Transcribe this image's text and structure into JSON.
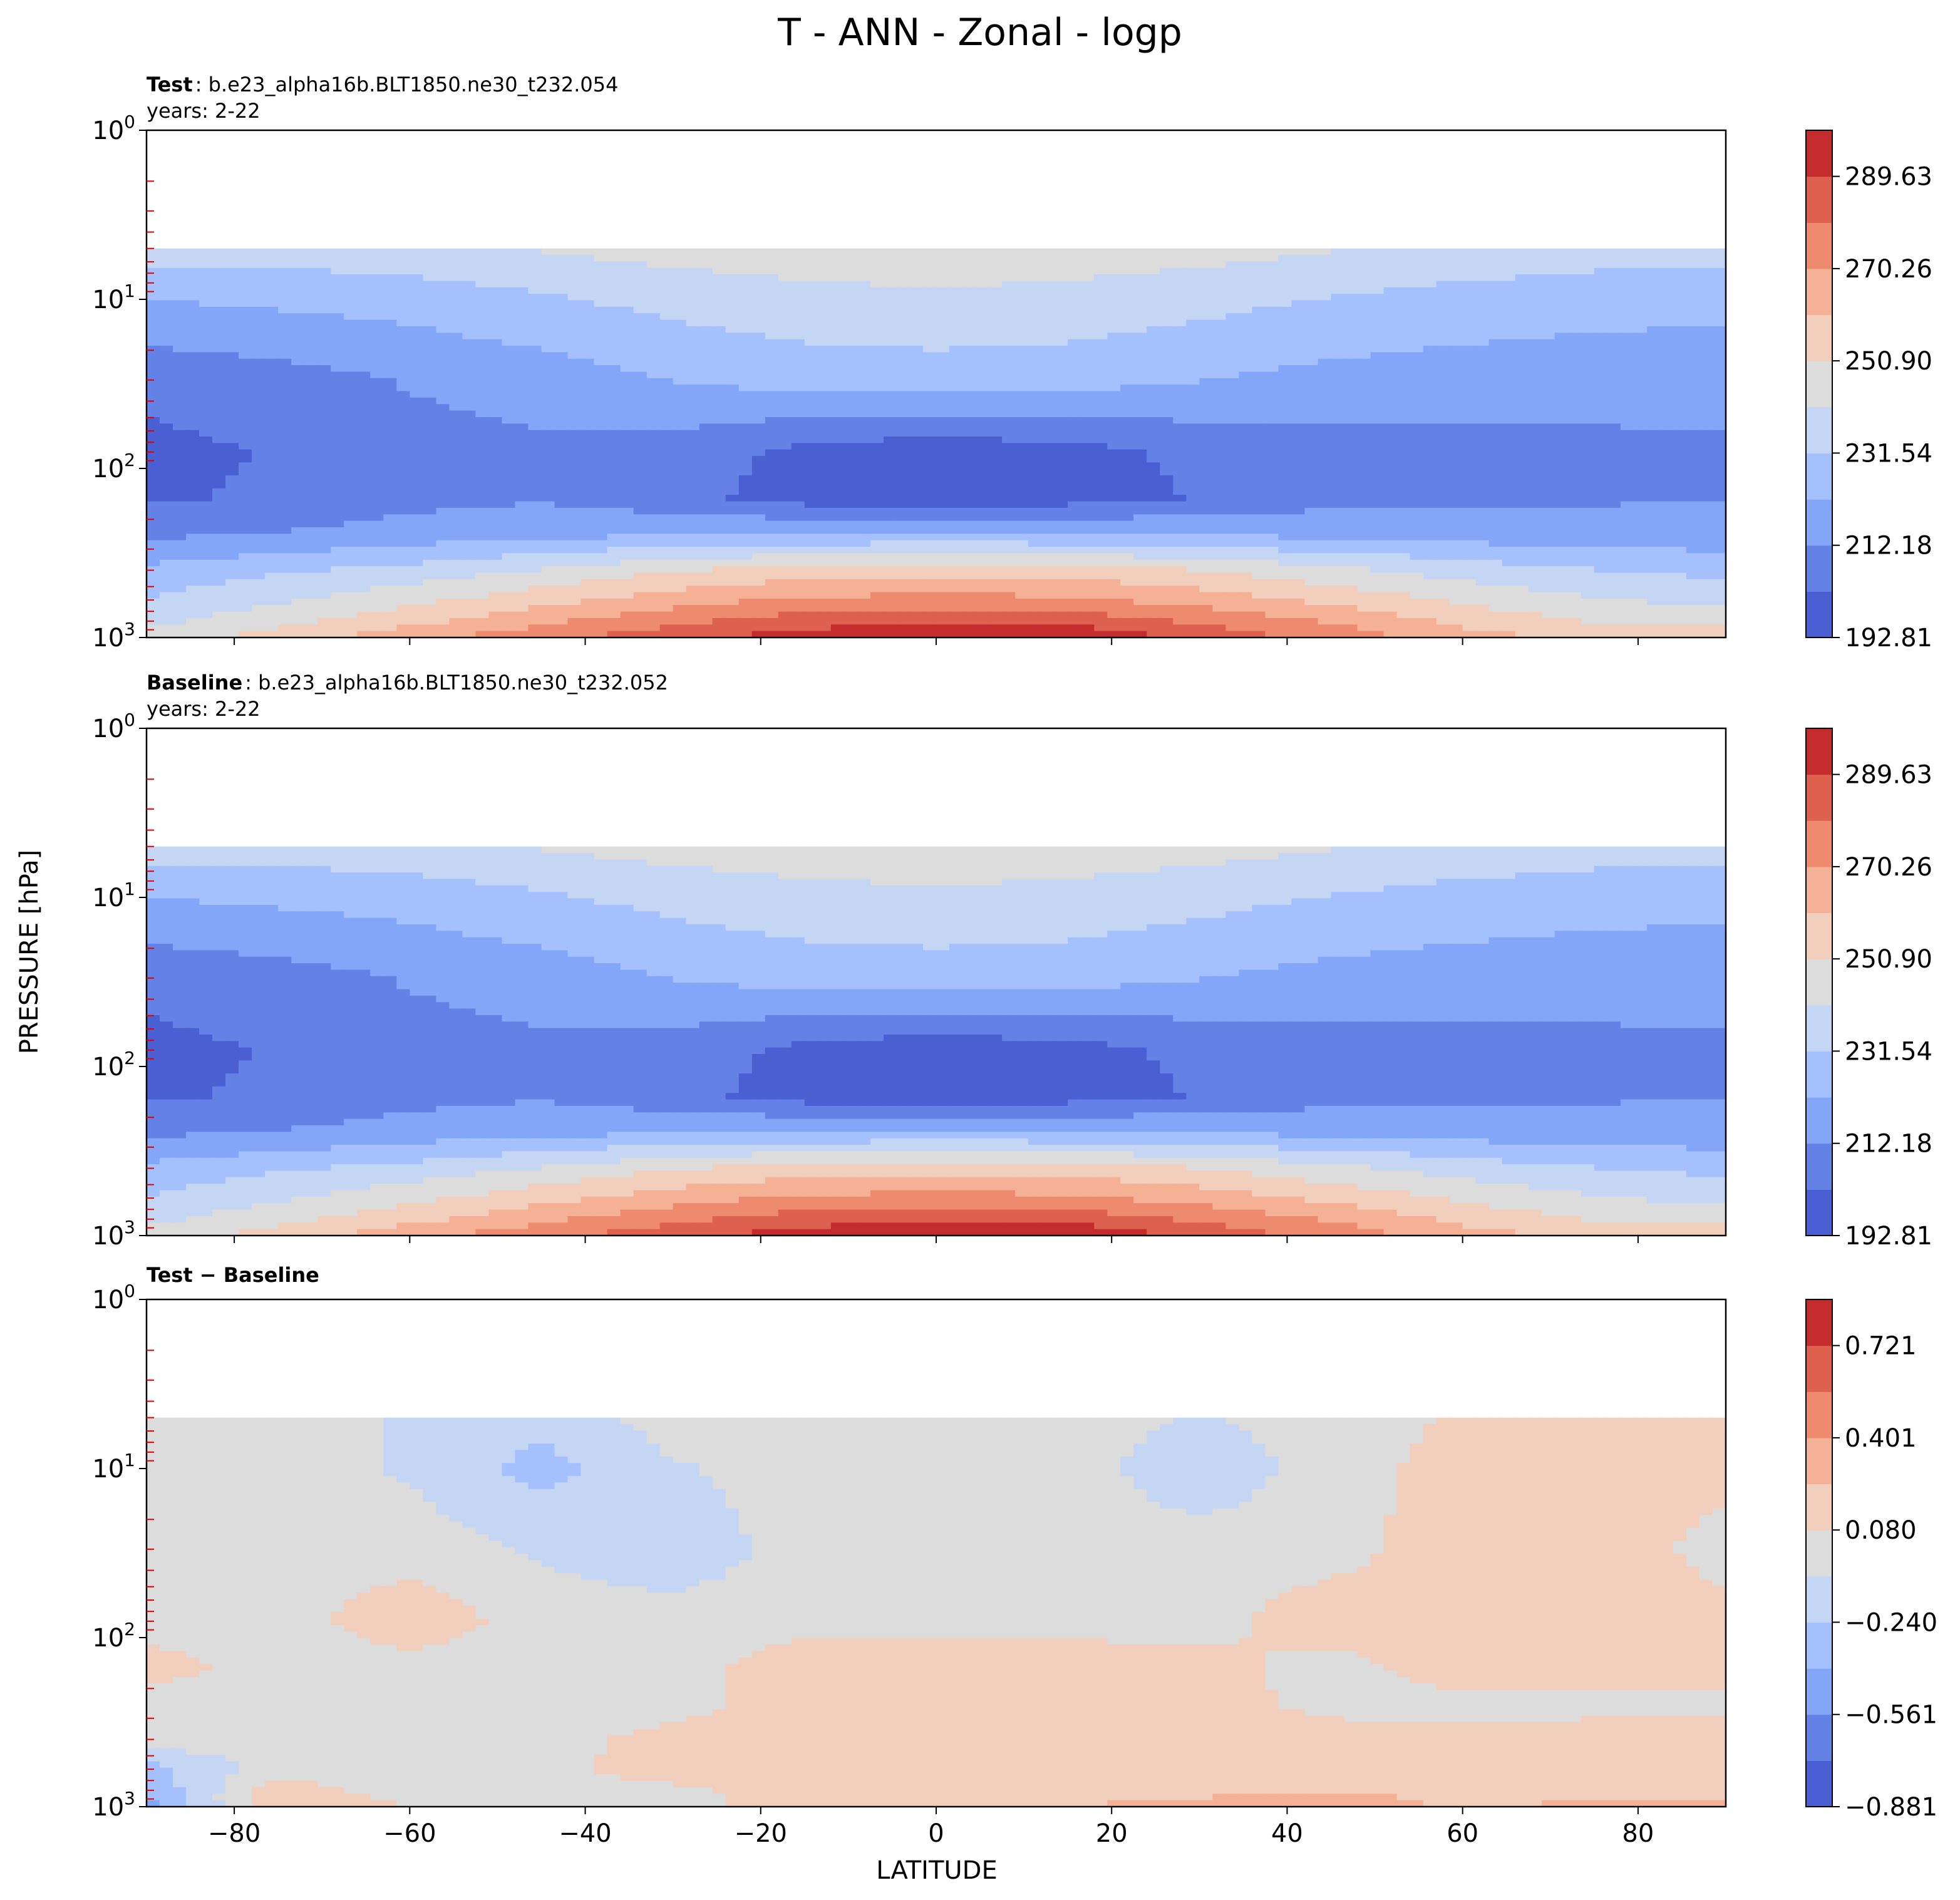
{
  "title": "T - ANN - Zonal - logp",
  "xlabel": "LATITUDE",
  "ylabel": "PRESSURE [hPa]",
  "colormap": "coolwarm",
  "chart_data": [
    {
      "type": "heatmap",
      "panel": "test",
      "header_bold": "Test",
      "header_text": ": b.e23_alpha16b.BLT1850.ne30_t232.054",
      "header_line2": "years: 2-22",
      "xlim": [
        -90,
        90
      ],
      "ylim_hpa": [
        1000,
        1
      ],
      "y_scale": "log",
      "x_ticks": [
        "−80",
        "−60",
        "−40",
        "−20",
        "0",
        "20",
        "40",
        "60",
        "80"
      ],
      "y_ticks": [
        {
          "base": "10",
          "exp": "0"
        },
        {
          "base": "10",
          "exp": "1"
        },
        {
          "base": "10",
          "exp": "2"
        },
        {
          "base": "10",
          "exp": "3"
        }
      ],
      "data_top_hpa": 5,
      "colorbar_labels": [
        "289.63",
        "270.26",
        "250.90",
        "231.54",
        "212.18",
        "192.81"
      ],
      "colorbar_range": [
        192.81,
        299.31
      ],
      "colors": [
        "#4a5fd1",
        "#6482e6",
        "#84a6f9",
        "#a5c1fd",
        "#c4d6f3",
        "#dcdcdc",
        "#f2cebd",
        "#f5b196",
        "#ee8a6d",
        "#de6150",
        "#c32b2d"
      ],
      "latitudes": [
        -90,
        -75,
        -60,
        -45,
        -30,
        -15,
        0,
        15,
        30,
        45,
        60,
        75,
        90
      ],
      "pressures_hpa": [
        5,
        10,
        30,
        80,
        150,
        250,
        400,
        600,
        850,
        1000
      ],
      "values": [
        [
          236,
          236,
          238,
          242,
          245,
          247,
          248,
          247,
          245,
          242,
          238,
          236,
          236
        ],
        [
          222,
          224,
          226,
          230,
          235,
          238,
          239,
          238,
          235,
          231,
          228,
          226,
          225
        ],
        [
          205,
          208,
          213,
          217,
          222,
          226,
          227,
          226,
          222,
          219,
          217,
          216,
          215
        ],
        [
          200,
          203,
          208,
          210,
          208,
          200,
          196,
          199,
          205,
          208,
          209,
          210,
          211
        ],
        [
          201,
          204,
          209,
          211,
          206,
          198,
          195,
          198,
          203,
          209,
          210,
          211,
          212
        ],
        [
          211,
          213,
          217,
          220,
          222,
          224,
          225,
          224,
          222,
          220,
          218,
          217,
          216
        ],
        [
          224,
          230,
          235,
          242,
          250,
          255,
          257,
          256,
          251,
          244,
          237,
          232,
          229
        ],
        [
          232,
          240,
          248,
          257,
          266,
          272,
          274,
          272,
          266,
          258,
          249,
          242,
          238
        ],
        [
          240,
          250,
          260,
          270,
          280,
          288,
          291,
          290,
          281,
          271,
          260,
          252,
          250
        ],
        [
          245,
          255,
          266,
          277,
          287,
          294,
          298,
          296,
          288,
          276,
          265,
          258,
          256
        ]
      ]
    },
    {
      "type": "heatmap",
      "panel": "baseline",
      "header_bold": "Baseline",
      "header_text": ": b.e23_alpha16b.BLT1850.ne30_t232.052",
      "header_line2": "years: 2-22",
      "xlim": [
        -90,
        90
      ],
      "ylim_hpa": [
        1000,
        1
      ],
      "y_scale": "log",
      "x_ticks": [
        "−80",
        "−60",
        "−40",
        "−20",
        "0",
        "20",
        "40",
        "60",
        "80"
      ],
      "y_ticks": [
        {
          "base": "10",
          "exp": "0"
        },
        {
          "base": "10",
          "exp": "1"
        },
        {
          "base": "10",
          "exp": "2"
        },
        {
          "base": "10",
          "exp": "3"
        }
      ],
      "data_top_hpa": 5,
      "colorbar_labels": [
        "289.63",
        "270.26",
        "250.90",
        "231.54",
        "212.18",
        "192.81"
      ],
      "colorbar_range": [
        192.81,
        299.31
      ],
      "colors": [
        "#4a5fd1",
        "#6482e6",
        "#84a6f9",
        "#a5c1fd",
        "#c4d6f3",
        "#dcdcdc",
        "#f2cebd",
        "#f5b196",
        "#ee8a6d",
        "#de6150",
        "#c32b2d"
      ],
      "latitudes": [
        -90,
        -75,
        -60,
        -45,
        -30,
        -15,
        0,
        15,
        30,
        45,
        60,
        75,
        90
      ],
      "pressures_hpa": [
        5,
        10,
        30,
        80,
        150,
        250,
        400,
        600,
        850,
        1000
      ],
      "values": [
        [
          236,
          236,
          238,
          242,
          245,
          247,
          248,
          247,
          245,
          242,
          238,
          236,
          236
        ],
        [
          222,
          224,
          226,
          230,
          235,
          238,
          239,
          238,
          235,
          231,
          228,
          226,
          225
        ],
        [
          205,
          208,
          213,
          217,
          222,
          226,
          227,
          226,
          222,
          219,
          217,
          216,
          215
        ],
        [
          200,
          203,
          208,
          210,
          208,
          200,
          196,
          199,
          205,
          208,
          209,
          210,
          211
        ],
        [
          201,
          204,
          209,
          211,
          206,
          198,
          195,
          198,
          203,
          209,
          210,
          211,
          212
        ],
        [
          211,
          213,
          217,
          220,
          222,
          224,
          225,
          224,
          222,
          220,
          218,
          217,
          216
        ],
        [
          224,
          230,
          235,
          242,
          250,
          255,
          257,
          256,
          251,
          244,
          237,
          232,
          229
        ],
        [
          232,
          240,
          248,
          257,
          266,
          272,
          274,
          272,
          266,
          258,
          249,
          242,
          238
        ],
        [
          240,
          250,
          260,
          270,
          280,
          288,
          291,
          290,
          281,
          271,
          260,
          252,
          250
        ],
        [
          245,
          255,
          266,
          277,
          287,
          294,
          298,
          296,
          288,
          276,
          265,
          258,
          256
        ]
      ]
    },
    {
      "type": "heatmap",
      "panel": "difference",
      "header_bold": "Test − Baseline",
      "header_text": "",
      "header_line2": "",
      "xlim": [
        -90,
        90
      ],
      "ylim_hpa": [
        1000,
        1
      ],
      "y_scale": "log",
      "x_ticks": [
        "−80",
        "−60",
        "−40",
        "−20",
        "0",
        "20",
        "40",
        "60",
        "80"
      ],
      "y_ticks": [
        {
          "base": "10",
          "exp": "0"
        },
        {
          "base": "10",
          "exp": "1"
        },
        {
          "base": "10",
          "exp": "2"
        },
        {
          "base": "10",
          "exp": "3"
        }
      ],
      "data_top_hpa": 5,
      "colorbar_labels": [
        "0.721",
        "0.401",
        "0.080",
        "−0.240",
        "−0.561",
        "−0.881"
      ],
      "colorbar_range": [
        -0.881,
        0.881
      ],
      "colors": [
        "#4a5fd1",
        "#6482e6",
        "#84a6f9",
        "#a5c1fd",
        "#c4d6f3",
        "#dcdcdc",
        "#f2cebd",
        "#f5b196",
        "#ee8a6d",
        "#de6150",
        "#c32b2d"
      ],
      "latitudes": [
        -90,
        -75,
        -60,
        -45,
        -30,
        -15,
        0,
        15,
        30,
        45,
        60,
        75,
        90
      ],
      "pressures_hpa": [
        5,
        10,
        30,
        80,
        150,
        250,
        400,
        600,
        850,
        1000
      ],
      "values": [
        [
          0.0,
          0.0,
          -0.1,
          -0.2,
          0.0,
          0.0,
          0.0,
          0.0,
          -0.1,
          0.0,
          0.1,
          0.1,
          0.1
        ],
        [
          0.0,
          0.0,
          -0.1,
          -0.3,
          -0.1,
          0.0,
          0.0,
          0.0,
          -0.2,
          0.0,
          0.15,
          0.15,
          0.15
        ],
        [
          0.0,
          0.0,
          0.0,
          -0.1,
          -0.2,
          0.0,
          0.0,
          0.0,
          0.0,
          0.0,
          0.2,
          0.2,
          0.0
        ],
        [
          0.0,
          0.0,
          0.2,
          0.0,
          0.0,
          0.0,
          0.0,
          0.0,
          0.0,
          0.2,
          0.2,
          0.2,
          0.15
        ],
        [
          0.15,
          0.0,
          0.0,
          0.0,
          0.0,
          0.2,
          0.2,
          0.2,
          0.15,
          0.0,
          0.2,
          0.2,
          0.2
        ],
        [
          0.0,
          0.0,
          0.0,
          0.0,
          0.0,
          0.2,
          0.2,
          0.2,
          0.2,
          0.0,
          0.0,
          0.0,
          0.0
        ],
        [
          0.0,
          0.0,
          0.0,
          0.0,
          0.15,
          0.2,
          0.2,
          0.2,
          0.2,
          0.2,
          0.15,
          0.2,
          0.2
        ],
        [
          -0.3,
          0.0,
          0.0,
          0.0,
          0.2,
          0.2,
          0.15,
          0.2,
          0.2,
          0.2,
          0.2,
          0.2,
          0.2
        ],
        [
          -0.4,
          0.2,
          0.0,
          0.0,
          0.0,
          0.2,
          0.15,
          0.2,
          0.2,
          0.25,
          0.2,
          0.2,
          0.2
        ],
        [
          -0.5,
          0.2,
          0.1,
          0.0,
          0.0,
          0.2,
          0.2,
          0.2,
          0.4,
          0.4,
          0.2,
          0.3,
          0.3
        ]
      ]
    }
  ]
}
